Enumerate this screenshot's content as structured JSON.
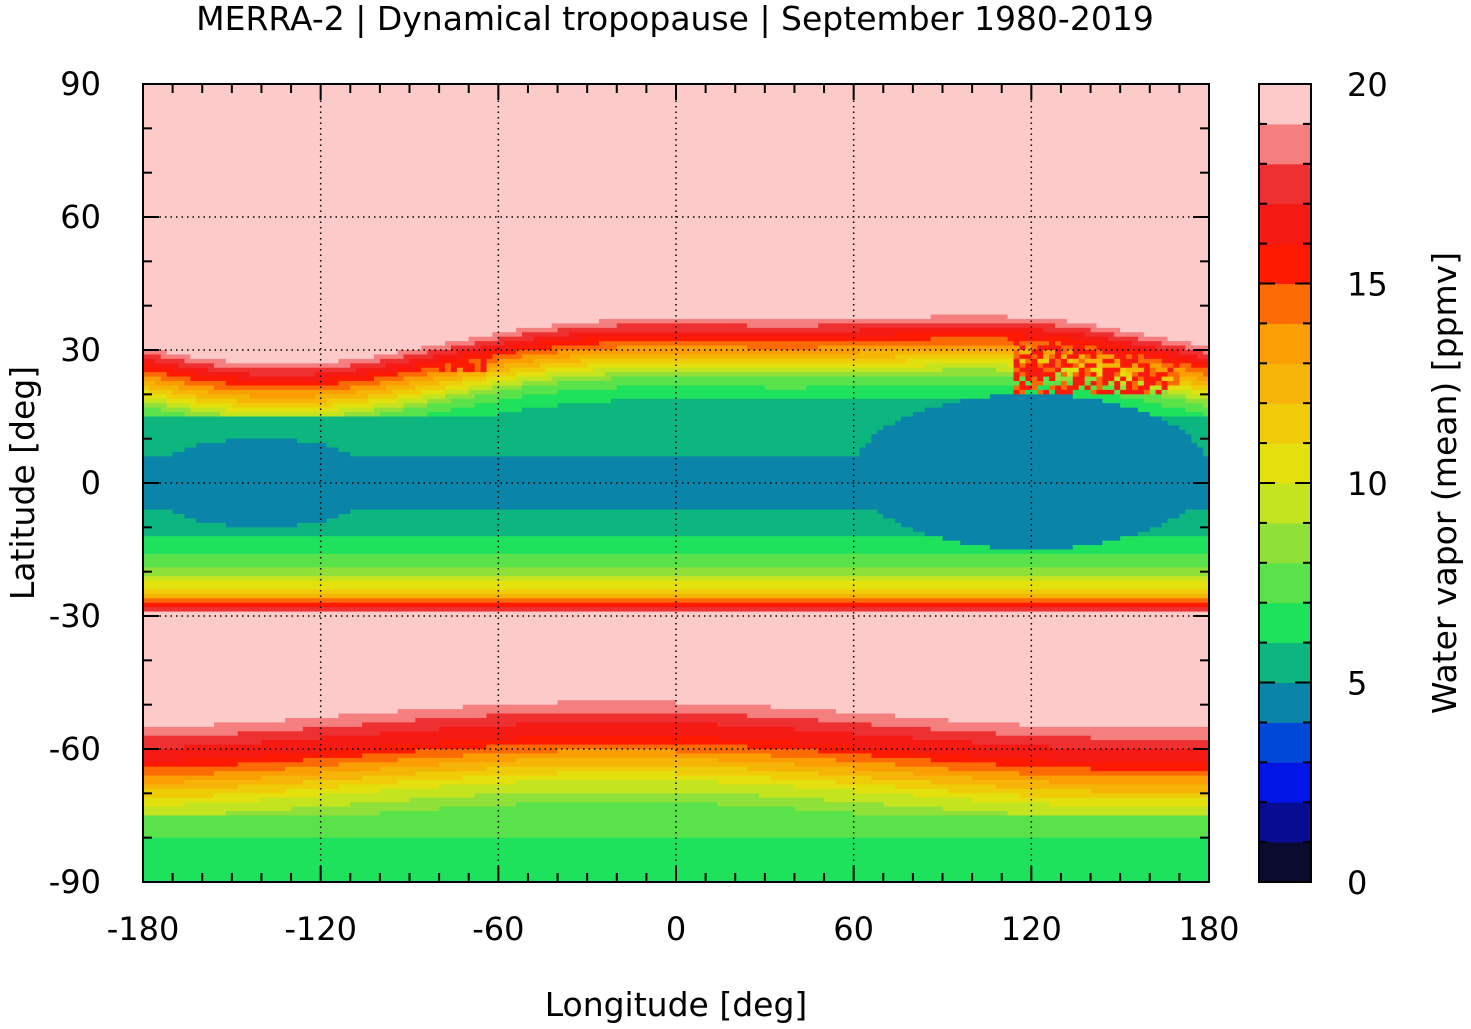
{
  "title": "MERRA-2 | Dynamical tropopause | September 1980-2019",
  "x_axis": {
    "label": "Longitude [deg]",
    "min": -180,
    "max": 180,
    "ticks": [
      -180,
      -120,
      -60,
      0,
      60,
      120,
      180
    ],
    "tick_labels": [
      "-180",
      "-120",
      "-60",
      "0",
      "60",
      "120",
      "180"
    ],
    "minor_step": 10
  },
  "y_axis": {
    "label": "Latitude [deg]",
    "min": -90,
    "max": 90,
    "ticks": [
      90,
      60,
      30,
      0,
      -30,
      -60,
      -90
    ],
    "tick_labels": [
      "90",
      "60",
      "30",
      "0",
      "-30",
      "-60",
      "-90"
    ],
    "minor_step": 10
  },
  "grid": "dotted at major ticks",
  "colorbar": {
    "label": "Water vapor (mean) [ppmv]",
    "min": 0,
    "max": 20,
    "ticks": [
      0,
      5,
      10,
      15,
      20
    ],
    "tick_labels": [
      "0",
      "5",
      "10",
      "15",
      "20"
    ],
    "levels": [
      {
        "from": 0,
        "to": 1,
        "color": "#0b0b30"
      },
      {
        "from": 1,
        "to": 2,
        "color": "#080c90"
      },
      {
        "from": 2,
        "to": 3,
        "color": "#0015e6"
      },
      {
        "from": 3,
        "to": 4,
        "color": "#0048d8"
      },
      {
        "from": 4,
        "to": 5,
        "color": "#0b84a9"
      },
      {
        "from": 5,
        "to": 6,
        "color": "#0db67e"
      },
      {
        "from": 6,
        "to": 7,
        "color": "#1fe25c"
      },
      {
        "from": 7,
        "to": 8,
        "color": "#5ae24a"
      },
      {
        "from": 8,
        "to": 9,
        "color": "#8fe038"
      },
      {
        "from": 9,
        "to": 10,
        "color": "#c3e41f"
      },
      {
        "from": 10,
        "to": 11,
        "color": "#e4e00d"
      },
      {
        "from": 11,
        "to": 12,
        "color": "#f0cc08"
      },
      {
        "from": 12,
        "to": 13,
        "color": "#f6b407"
      },
      {
        "from": 13,
        "to": 14,
        "color": "#fa9e04"
      },
      {
        "from": 14,
        "to": 15,
        "color": "#fc6a04"
      },
      {
        "from": 15,
        "to": 16,
        "color": "#fd1a00"
      },
      {
        "from": 16,
        "to": 17,
        "color": "#f61a14"
      },
      {
        "from": 17,
        "to": 18,
        "color": "#ee3030"
      },
      {
        "from": 18,
        "to": 19,
        "color": "#f57f7f"
      },
      {
        "from": 19,
        "to": 20,
        "color": "#fdcaca"
      }
    ]
  },
  "chart_data": {
    "type": "heatmap",
    "title": "MERRA-2 | Dynamical tropopause | September 1980-2019",
    "xlabel": "Longitude [deg]",
    "ylabel": "Latitude [deg]",
    "xlim": [
      -180,
      180
    ],
    "ylim": [
      -90,
      90
    ],
    "colorbar_label": "Water vapor (mean) [ppmv]",
    "colorbar_range": [
      0,
      20
    ],
    "zonal_profile": {
      "latitudes": [
        90,
        60,
        35,
        30,
        25,
        20,
        15,
        10,
        5,
        0,
        -5,
        -10,
        -15,
        -20,
        -25,
        -28,
        -30,
        -40,
        -50,
        -57,
        -60,
        -65,
        -70,
        -75,
        -80,
        -85,
        -90
      ],
      "water_vapor_ppmv": [
        20,
        20,
        20,
        16,
        12,
        7.5,
        5.8,
        5.5,
        4.8,
        4.5,
        4.8,
        5.5,
        6.5,
        8.5,
        12,
        16,
        20,
        20,
        20,
        17,
        16,
        13,
        10,
        8,
        7,
        6.5,
        6
      ]
    },
    "features": [
      {
        "name": "pacific-low",
        "lon_range": [
          -180,
          -100
        ],
        "lat_range": [
          -10,
          10
        ],
        "value_ppmv": 4.5
      },
      {
        "name": "warm-pool-low",
        "lon_range": [
          60,
          180
        ],
        "lat_range": [
          -15,
          20
        ],
        "value_ppmv": 4.5
      },
      {
        "name": "asian-monsoon-moist-patch",
        "lon_range": [
          115,
          170
        ],
        "lat_range": [
          20,
          38
        ],
        "value_ppmv": 17
      },
      {
        "name": "north-american-monsoon-moist-patch",
        "lon_range": [
          -95,
          -65
        ],
        "lat_range": [
          25,
          35
        ],
        "value_ppmv": 17
      }
    ]
  }
}
